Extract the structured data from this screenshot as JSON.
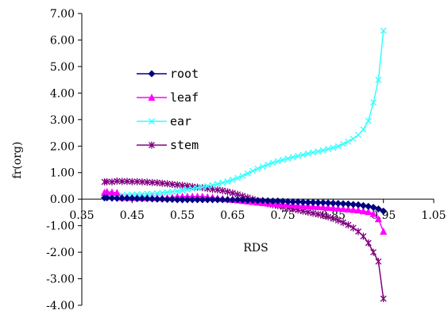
{
  "chart_data": {
    "type": "line",
    "xlabel": "RDS",
    "ylabel": "fr(org)",
    "xlim": [
      0.35,
      1.05
    ],
    "ylim": [
      -4.0,
      7.0
    ],
    "xticks": [
      "0.35",
      "0.45",
      "0.55",
      "0.65",
      "0.75",
      "0.85",
      "0.95",
      "1.05"
    ],
    "yticks": [
      "7.00",
      "6.00",
      "5.00",
      "4.00",
      "3.00",
      "2.00",
      "1.00",
      "0.00",
      "-1.00",
      "-2.00",
      "-3.00",
      "-4.00"
    ],
    "legend_position": "left",
    "grid": false,
    "series": [
      {
        "name": "root",
        "color": "#000080",
        "marker": "diamond",
        "x": [
          0.395,
          0.4,
          0.41,
          0.42,
          0.43,
          0.44,
          0.45,
          0.46,
          0.47,
          0.48,
          0.49,
          0.5,
          0.51,
          0.52,
          0.53,
          0.54,
          0.55,
          0.56,
          0.57,
          0.58,
          0.59,
          0.6,
          0.61,
          0.62,
          0.63,
          0.64,
          0.65,
          0.66,
          0.67,
          0.68,
          0.69,
          0.7,
          0.71,
          0.72,
          0.73,
          0.74,
          0.75,
          0.76,
          0.77,
          0.78,
          0.79,
          0.8,
          0.81,
          0.82,
          0.83,
          0.84,
          0.85,
          0.86,
          0.87,
          0.88,
          0.89,
          0.9,
          0.91,
          0.92,
          0.93,
          0.94,
          0.95
        ],
        "y": [
          0.05,
          0.05,
          0.04,
          0.03,
          0.03,
          0.03,
          0.03,
          0.02,
          0.02,
          0.02,
          0.01,
          0.0,
          0.0,
          -0.01,
          -0.01,
          -0.02,
          -0.02,
          -0.02,
          -0.02,
          -0.02,
          -0.02,
          -0.02,
          -0.02,
          -0.02,
          -0.02,
          -0.02,
          -0.02,
          -0.02,
          -0.03,
          -0.04,
          -0.04,
          -0.05,
          -0.05,
          -0.06,
          -0.07,
          -0.07,
          -0.08,
          -0.09,
          -0.1,
          -0.1,
          -0.11,
          -0.12,
          -0.12,
          -0.13,
          -0.13,
          -0.14,
          -0.15,
          -0.16,
          -0.17,
          -0.18,
          -0.2,
          -0.21,
          -0.24,
          -0.27,
          -0.31,
          -0.37,
          -0.45
        ]
      },
      {
        "name": "leaf",
        "color": "#ff00ff",
        "marker": "triangle",
        "x": [
          0.395,
          0.4,
          0.41,
          0.42,
          0.43,
          0.44,
          0.45,
          0.46,
          0.47,
          0.48,
          0.49,
          0.5,
          0.51,
          0.52,
          0.53,
          0.54,
          0.55,
          0.56,
          0.57,
          0.58,
          0.59,
          0.6,
          0.61,
          0.62,
          0.63,
          0.64,
          0.65,
          0.66,
          0.67,
          0.68,
          0.69,
          0.7,
          0.71,
          0.72,
          0.73,
          0.74,
          0.75,
          0.76,
          0.77,
          0.78,
          0.79,
          0.8,
          0.81,
          0.82,
          0.83,
          0.84,
          0.85,
          0.86,
          0.87,
          0.88,
          0.89,
          0.9,
          0.91,
          0.92,
          0.93,
          0.94,
          0.95
        ],
        "y": [
          0.25,
          0.28,
          0.26,
          0.24,
          0.07,
          0.06,
          0.05,
          0.05,
          0.05,
          0.05,
          0.05,
          0.05,
          0.05,
          0.05,
          0.07,
          0.09,
          0.1,
          0.1,
          0.1,
          0.1,
          0.1,
          0.08,
          0.06,
          0.04,
          0.02,
          0.0,
          -0.02,
          -0.04,
          -0.06,
          -0.08,
          -0.1,
          -0.12,
          -0.14,
          -0.16,
          -0.17,
          -0.18,
          -0.2,
          -0.21,
          -0.22,
          -0.24,
          -0.25,
          -0.26,
          -0.28,
          -0.29,
          -0.3,
          -0.32,
          -0.33,
          -0.35,
          -0.37,
          -0.38,
          -0.4,
          -0.42,
          -0.45,
          -0.48,
          -0.55,
          -0.75,
          -1.22
        ]
      },
      {
        "name": "ear",
        "color": "#33ffff",
        "marker": "x",
        "x": [
          0.395,
          0.4,
          0.41,
          0.42,
          0.43,
          0.44,
          0.45,
          0.46,
          0.47,
          0.48,
          0.49,
          0.5,
          0.51,
          0.52,
          0.53,
          0.54,
          0.55,
          0.56,
          0.57,
          0.58,
          0.59,
          0.6,
          0.61,
          0.62,
          0.63,
          0.64,
          0.65,
          0.66,
          0.67,
          0.68,
          0.69,
          0.7,
          0.71,
          0.72,
          0.73,
          0.74,
          0.75,
          0.76,
          0.77,
          0.78,
          0.79,
          0.8,
          0.81,
          0.82,
          0.83,
          0.84,
          0.85,
          0.86,
          0.87,
          0.88,
          0.89,
          0.9,
          0.91,
          0.92,
          0.93,
          0.94,
          0.95
        ],
        "y": [
          0.1,
          0.12,
          0.13,
          0.14,
          0.15,
          0.16,
          0.17,
          0.18,
          0.19,
          0.2,
          0.21,
          0.22,
          0.24,
          0.26,
          0.28,
          0.3,
          0.33,
          0.36,
          0.39,
          0.42,
          0.45,
          0.49,
          0.53,
          0.57,
          0.62,
          0.67,
          0.73,
          0.8,
          0.88,
          0.97,
          1.06,
          1.15,
          1.23,
          1.3,
          1.37,
          1.43,
          1.48,
          1.53,
          1.58,
          1.63,
          1.67,
          1.72,
          1.76,
          1.8,
          1.84,
          1.89,
          1.94,
          2.0,
          2.08,
          2.17,
          2.28,
          2.42,
          2.63,
          2.95,
          3.65,
          4.5,
          6.35
        ]
      },
      {
        "name": "stem",
        "color": "#800080",
        "marker": "asterisk",
        "x": [
          0.395,
          0.4,
          0.41,
          0.42,
          0.43,
          0.44,
          0.45,
          0.46,
          0.47,
          0.48,
          0.49,
          0.5,
          0.51,
          0.52,
          0.53,
          0.54,
          0.55,
          0.56,
          0.57,
          0.58,
          0.59,
          0.6,
          0.61,
          0.62,
          0.63,
          0.64,
          0.65,
          0.66,
          0.67,
          0.68,
          0.69,
          0.7,
          0.71,
          0.72,
          0.73,
          0.74,
          0.75,
          0.76,
          0.77,
          0.78,
          0.79,
          0.8,
          0.81,
          0.82,
          0.83,
          0.84,
          0.85,
          0.86,
          0.87,
          0.88,
          0.89,
          0.9,
          0.91,
          0.92,
          0.93,
          0.94,
          0.95
        ],
        "y": [
          0.65,
          0.66,
          0.65,
          0.68,
          0.67,
          0.67,
          0.66,
          0.66,
          0.65,
          0.64,
          0.63,
          0.62,
          0.6,
          0.58,
          0.56,
          0.54,
          0.52,
          0.5,
          0.47,
          0.45,
          0.43,
          0.4,
          0.37,
          0.35,
          0.32,
          0.28,
          0.23,
          0.18,
          0.12,
          0.06,
          0.0,
          -0.06,
          -0.12,
          -0.17,
          -0.21,
          -0.25,
          -0.29,
          -0.33,
          -0.37,
          -0.41,
          -0.45,
          -0.49,
          -0.53,
          -0.57,
          -0.62,
          -0.67,
          -0.73,
          -0.8,
          -0.88,
          -0.97,
          -1.08,
          -1.22,
          -1.4,
          -1.65,
          -2.0,
          -2.35,
          -3.75
        ]
      }
    ]
  }
}
